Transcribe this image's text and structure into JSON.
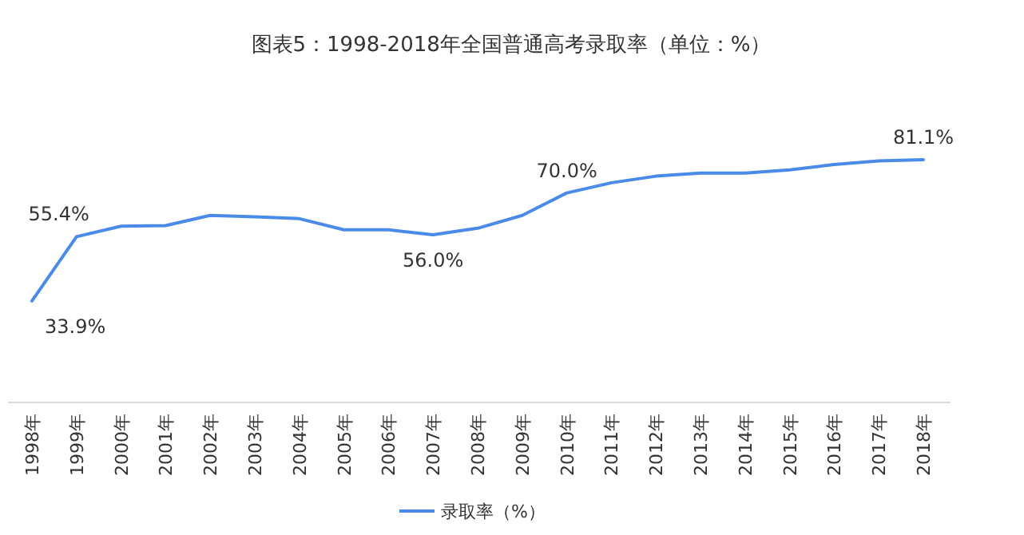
{
  "chart_data": {
    "type": "line",
    "title": "图表5：1998-2018年全国普通高考录取率（单位：%）",
    "categories": [
      "1998年",
      "1999年",
      "2000年",
      "2001年",
      "2002年",
      "2003年",
      "2004年",
      "2005年",
      "2006年",
      "2007年",
      "2008年",
      "2009年",
      "2010年",
      "2011年",
      "2012年",
      "2013年",
      "2014年",
      "2015年",
      "2016年",
      "2017年",
      "2018年"
    ],
    "series": [
      {
        "name": "录取率（%）",
        "color": "#4a8ae8",
        "values": [
          33.9,
          55.4,
          58.9,
          59.1,
          62.5,
          62.0,
          61.4,
          57.7,
          57.7,
          56.0,
          58.2,
          62.5,
          70.0,
          73.4,
          75.6,
          76.6,
          76.6,
          77.7,
          79.5,
          80.7,
          81.1
        ],
        "value_labels": [
          "33.9%",
          "55.4%",
          null,
          null,
          null,
          null,
          null,
          null,
          null,
          "56.0%",
          null,
          null,
          "70.0%",
          null,
          null,
          null,
          null,
          null,
          null,
          null,
          "81.1%"
        ]
      }
    ],
    "legend": "bottom",
    "marker": "none"
  }
}
